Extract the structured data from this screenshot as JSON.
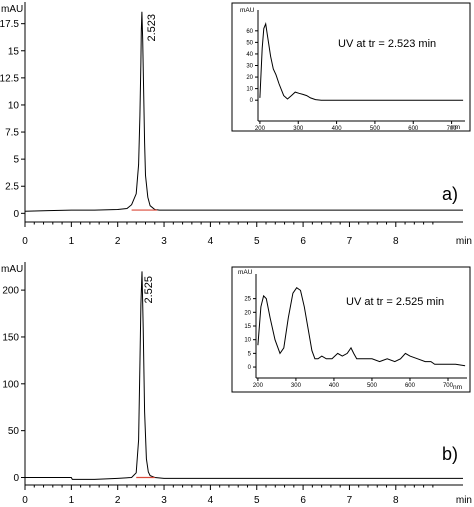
{
  "chart_data": [
    {
      "type": "line",
      "panel_label": "a)",
      "xlabel": "min",
      "ylabel": "mAU",
      "xlim": [
        0,
        9.45
      ],
      "ylim": [
        -0.8,
        19.5
      ],
      "x_ticks": [
        0,
        1,
        2,
        3,
        4,
        5,
        6,
        7,
        8
      ],
      "y_ticks": [
        0,
        2.5,
        5,
        7.5,
        10,
        12.5,
        15,
        17.5
      ],
      "y_tick_labels": [
        "0",
        "2.5",
        "5",
        "7.5",
        "10",
        "12.5",
        "15",
        "17.5"
      ],
      "peak": {
        "label": "2.523",
        "x": 2.523,
        "y": 18.6,
        "baseline_start": 2.3,
        "baseline_end": 2.85,
        "baseline_y": 0.3
      },
      "series": [
        {
          "x": [
            0,
            0.5,
            1.0,
            1.5,
            2.0,
            2.2,
            2.3,
            2.4,
            2.45,
            2.48,
            2.5,
            2.51,
            2.523,
            2.54,
            2.56,
            2.58,
            2.6,
            2.65,
            2.7,
            2.8,
            2.9,
            3.0,
            4.0,
            5.0,
            6.0,
            7.0,
            8.0,
            9.0,
            9.45
          ],
          "y": [
            0.2,
            0.25,
            0.3,
            0.3,
            0.35,
            0.45,
            0.8,
            1.8,
            4.5,
            9.0,
            14.0,
            16.8,
            18.6,
            16.0,
            11.0,
            6.5,
            3.5,
            1.5,
            0.7,
            0.35,
            0.3,
            0.3,
            0.3,
            0.3,
            0.3,
            0.3,
            0.3,
            0.3,
            0.3
          ]
        }
      ],
      "inset": {
        "type": "line",
        "caption": "UV at tr = 2.523 min",
        "ylabel": "mAU",
        "xlabel": "nm",
        "xlim": [
          195,
          735
        ],
        "ylim": [
          -18,
          78
        ],
        "x_ticks": [
          200,
          300,
          400,
          500,
          600,
          700
        ],
        "y_ticks": [
          0,
          10,
          20,
          30,
          40,
          50,
          60
        ],
        "series": [
          {
            "x": [
              200,
              206,
              210,
              215,
              220,
              228,
              235,
              242,
              250,
              262,
              272,
              282,
              292,
              302,
              312,
              322,
              332,
              345,
              360,
              400,
              450,
              500,
              600,
              700,
              730
            ],
            "y": [
              2,
              45,
              62,
              66,
              55,
              38,
              27,
              22,
              14,
              4,
              1,
              4,
              7,
              6,
              5,
              4,
              2,
              0.5,
              0,
              0,
              0,
              0,
              0,
              0,
              0
            ]
          }
        ]
      }
    },
    {
      "type": "line",
      "panel_label": "b)",
      "xlabel": "min",
      "ylabel": "mAU",
      "xlim": [
        0,
        9.45
      ],
      "ylim": [
        -8,
        230
      ],
      "x_ticks": [
        0,
        1,
        2,
        3,
        4,
        5,
        6,
        7,
        8
      ],
      "y_ticks": [
        0,
        50,
        100,
        150,
        200
      ],
      "y_tick_labels": [
        "0",
        "50",
        "100",
        "150",
        "200"
      ],
      "peak": {
        "label": "2.525",
        "x": 2.525,
        "y": 220,
        "baseline_start": 2.4,
        "baseline_end": 2.8,
        "baseline_y": 0
      },
      "series": [
        {
          "x": [
            0,
            1.0,
            1.02,
            1.5,
            2.0,
            2.3,
            2.4,
            2.45,
            2.48,
            2.5,
            2.525,
            2.55,
            2.58,
            2.62,
            2.66,
            2.7,
            2.8,
            3.0,
            4.0,
            5.0,
            6.0,
            7.0,
            8.0,
            9.0,
            9.45
          ],
          "y": [
            0,
            0,
            -2,
            -2,
            -1,
            0,
            5,
            40,
            120,
            185,
            220,
            160,
            70,
            20,
            6,
            2,
            0,
            -1,
            -1,
            -1,
            -1,
            -1,
            -1,
            -1,
            -1
          ]
        }
      ],
      "inset": {
        "type": "line",
        "caption": "UV at tr = 2.525 min",
        "ylabel": "mAU",
        "xlabel": "nm",
        "xlim": [
          195,
          750
        ],
        "ylim": [
          -4,
          34
        ],
        "x_ticks": [
          200,
          300,
          400,
          500,
          600,
          700
        ],
        "y_ticks": [
          0,
          5,
          10,
          15,
          20,
          25
        ],
        "series": [
          {
            "x": [
              200,
              208,
              215,
              222,
              232,
              245,
              258,
              268,
              280,
              292,
              302,
              312,
              322,
              332,
              342,
              350,
              358,
              368,
              380,
              395,
              410,
              422,
              435,
              445,
              452,
              460,
              480,
              500,
              520,
              540,
              560,
              575,
              588,
              600,
              620,
              640,
              655,
              665,
              680,
              700,
              720,
              745
            ],
            "y": [
              8,
              22,
              26,
              25,
              18,
              10,
              5,
              7,
              18,
              27,
              29,
              28,
              22,
              14,
              6,
              3,
              3,
              4,
              3,
              3,
              5,
              4,
              5,
              7,
              5,
              3,
              3,
              3,
              2,
              3,
              2,
              3,
              5,
              4,
              3,
              2,
              2,
              1,
              1,
              1,
              1,
              0.5
            ]
          }
        ]
      }
    }
  ]
}
